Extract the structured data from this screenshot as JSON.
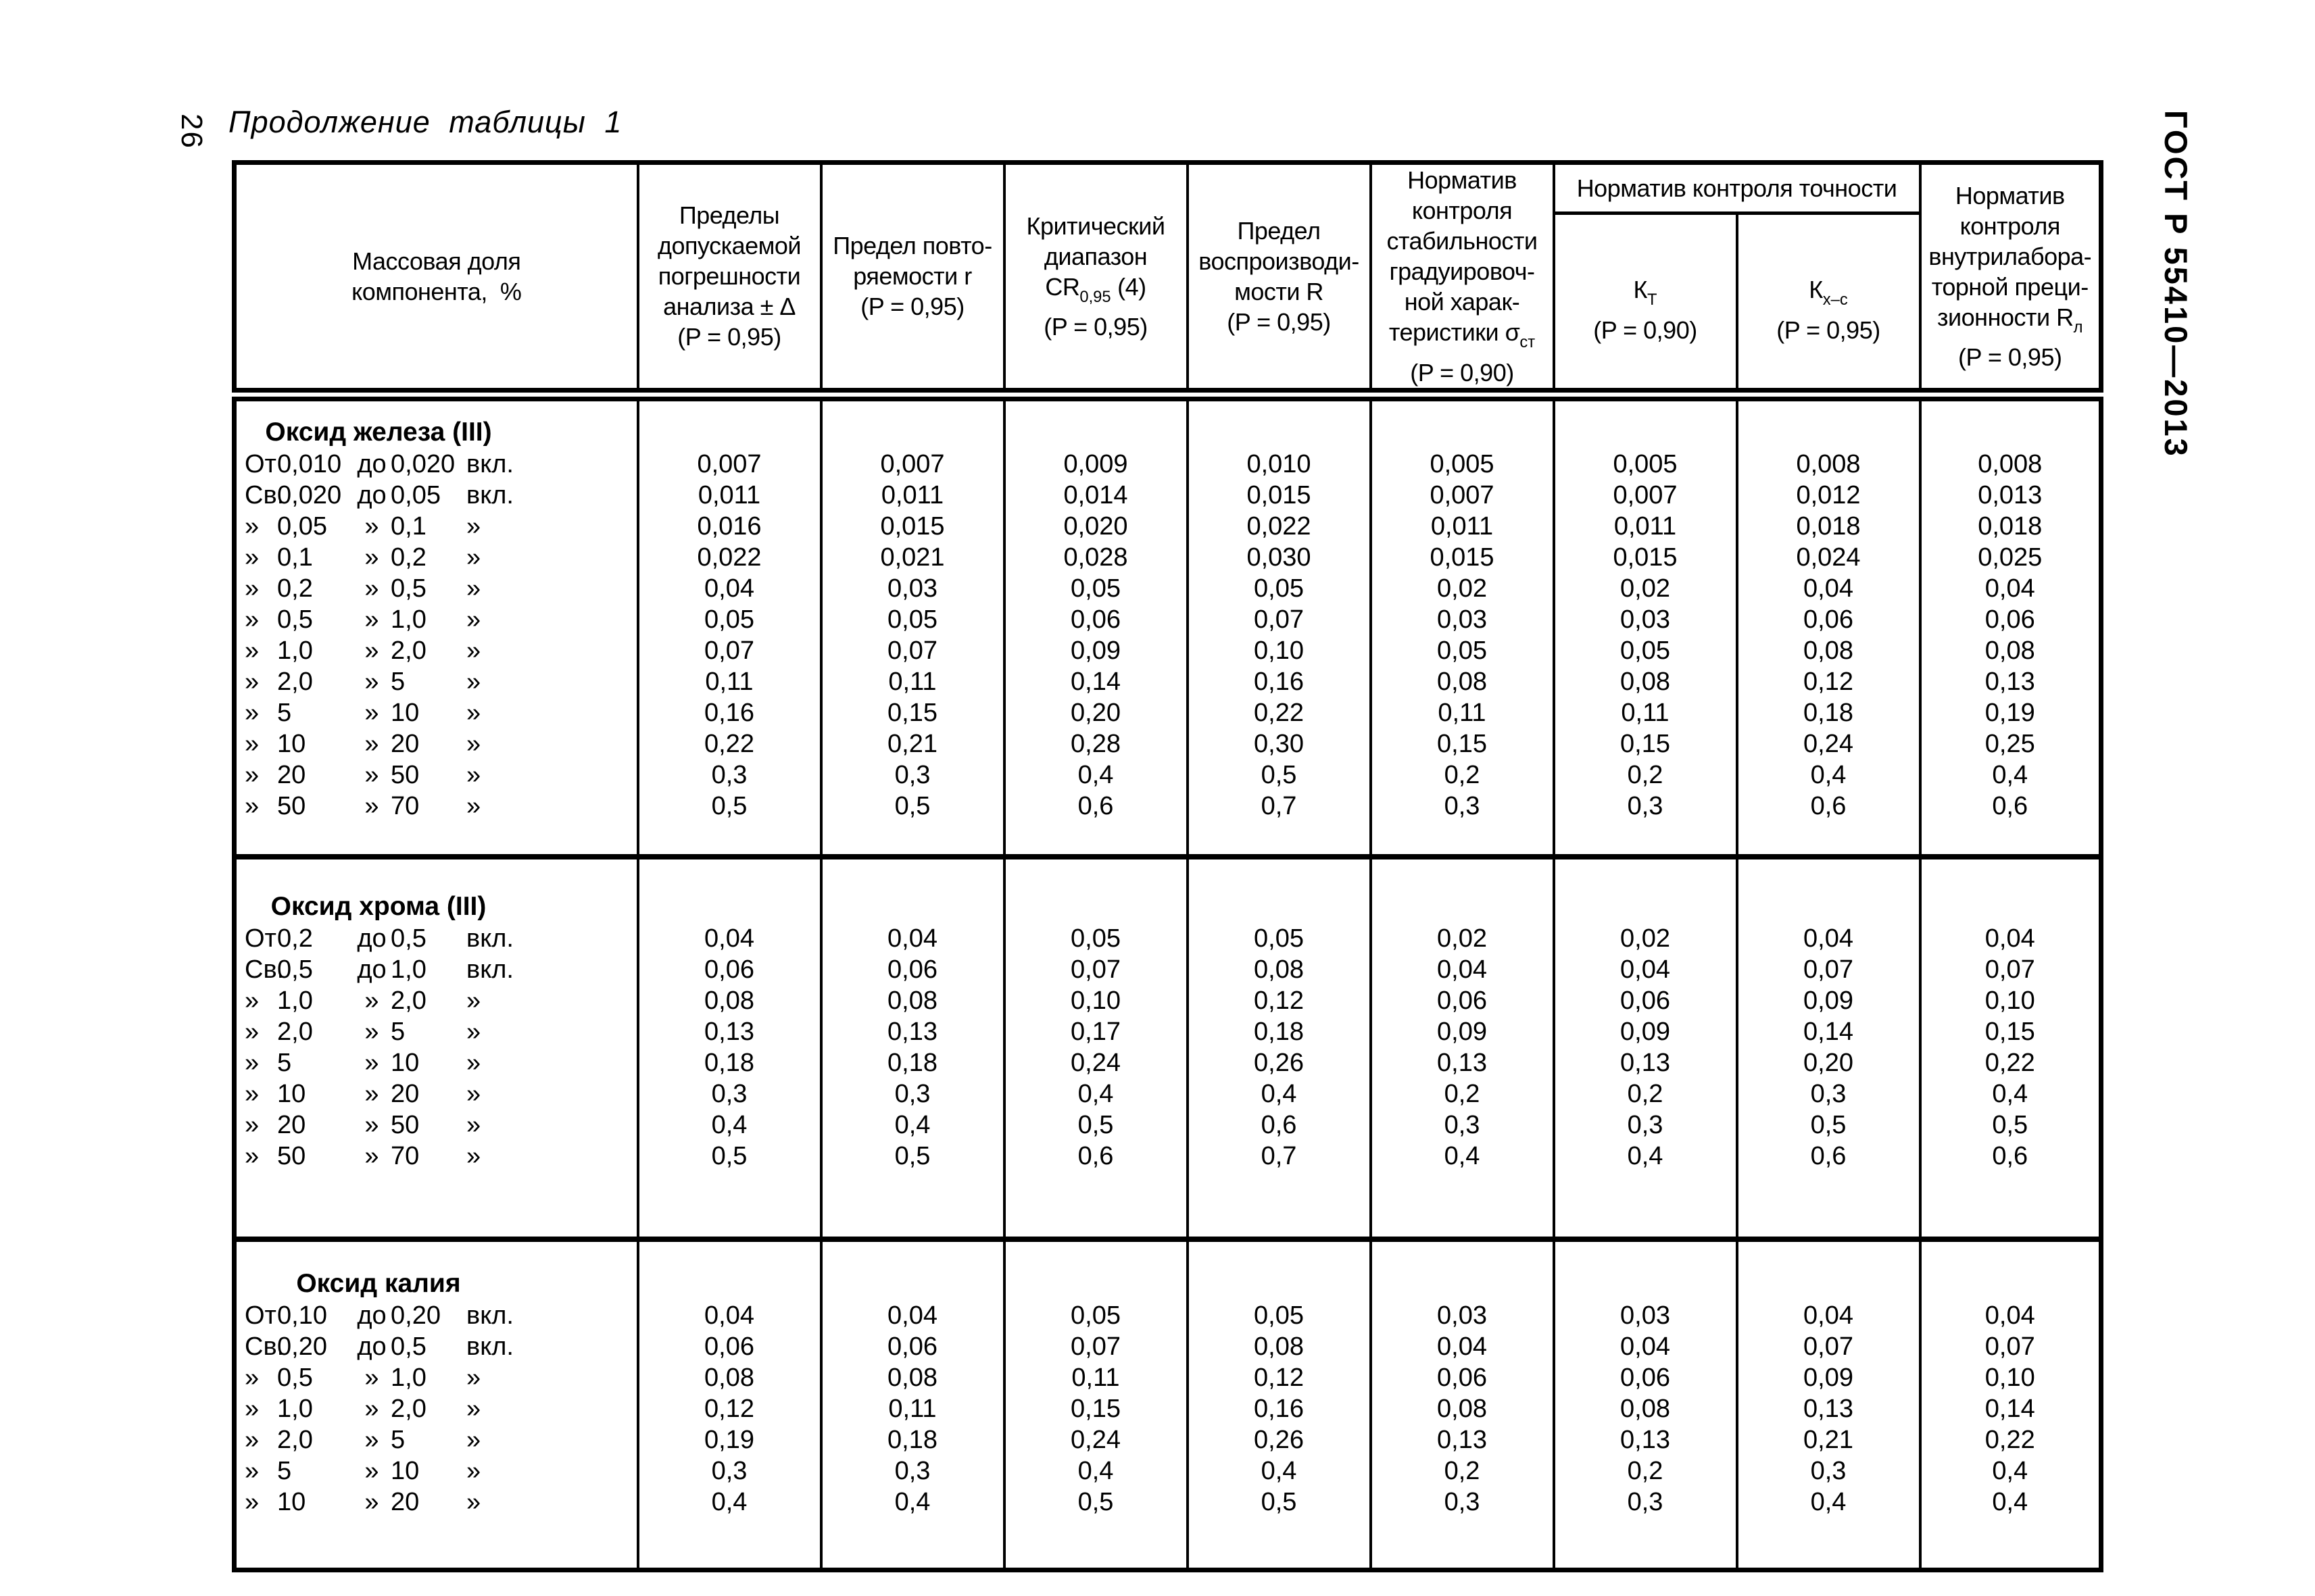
{
  "page": {
    "number": "26",
    "title": "Продолжение таблицы 1",
    "side_label": "ГОСТ Р 55410—2013"
  },
  "header": {
    "col1": {
      "l1": "Массовая доля",
      "l2": "компонента,  %"
    },
    "col2": {
      "l1": "Пределы",
      "l2": "допускаемой",
      "l3": "погрешности",
      "l4": "анализа ± Δ",
      "l5": "(P = 0,95)"
    },
    "col3": {
      "l1": "Предел повто-",
      "l2": "ряемости r",
      "l3": "(P = 0,95)"
    },
    "col4": {
      "l1": "Критический",
      "l2": "диапазон",
      "cr": "CR",
      "cr_sub": "0,95",
      "cr_suf": " (4)",
      "l4": "(P = 0,95)"
    },
    "col5": {
      "l1": "Предел",
      "l2": "воспроизводи-",
      "l3": "мости R",
      "l4": "(P = 0,95)"
    },
    "col6": {
      "l1": "Норматив",
      "l2": "контроля",
      "l3": "стабильности",
      "l4": "градуировоч-",
      "l5": "ной харак-",
      "l6_pre": "теристики σ",
      "l6_sub": "ст",
      "l7": "(P = 0,90)"
    },
    "accuracy_group": {
      "title": "Норматив контроля точности",
      "kt": {
        "sym": "К",
        "sub": "Т",
        "p": "(P = 0,90)"
      },
      "kxc": {
        "sym": "К",
        "sub": "х–с",
        "p": "(P = 0,95)"
      }
    },
    "col9": {
      "l1": "Норматив",
      "l2": "контроля",
      "l3": "внутрилабора-",
      "l4": "торной преци-",
      "l5_pre": "зионности R",
      "l5_sub": "л",
      "l6": "(P = 0,95)"
    }
  },
  "sections": [
    {
      "title": "Оксид железа (III)",
      "rows": [
        {
          "c": [
            "От",
            "0,010",
            "до",
            "0,020",
            "вкл."
          ],
          "v": [
            "0,007",
            "0,007",
            "0,009",
            "0,010",
            "0,005",
            "0,005",
            "0,008",
            "0,008"
          ]
        },
        {
          "c": [
            "Св.",
            "0,020",
            "до",
            "0,05",
            "вкл."
          ],
          "v": [
            "0,011",
            "0,011",
            "0,014",
            "0,015",
            "0,007",
            "0,007",
            "0,012",
            "0,013"
          ]
        },
        {
          "c": [
            "»",
            "0,05",
            "»",
            "0,1",
            "»"
          ],
          "v": [
            "0,016",
            "0,015",
            "0,020",
            "0,022",
            "0,011",
            "0,011",
            "0,018",
            "0,018"
          ]
        },
        {
          "c": [
            "»",
            "0,1",
            "»",
            "0,2",
            "»"
          ],
          "v": [
            "0,022",
            "0,021",
            "0,028",
            "0,030",
            "0,015",
            "0,015",
            "0,024",
            "0,025"
          ]
        },
        {
          "c": [
            "»",
            "0,2",
            "»",
            "0,5",
            "»"
          ],
          "v": [
            "0,04",
            "0,03",
            "0,05",
            "0,05",
            "0,02",
            "0,02",
            "0,04",
            "0,04"
          ]
        },
        {
          "c": [
            "»",
            "0,5",
            "»",
            "1,0",
            "»"
          ],
          "v": [
            "0,05",
            "0,05",
            "0,06",
            "0,07",
            "0,03",
            "0,03",
            "0,06",
            "0,06"
          ]
        },
        {
          "c": [
            "»",
            "1,0",
            "»",
            "2,0",
            "»"
          ],
          "v": [
            "0,07",
            "0,07",
            "0,09",
            "0,10",
            "0,05",
            "0,05",
            "0,08",
            "0,08"
          ]
        },
        {
          "c": [
            "»",
            "2,0",
            "»",
            "5",
            "»"
          ],
          "v": [
            "0,11",
            "0,11",
            "0,14",
            "0,16",
            "0,08",
            "0,08",
            "0,12",
            "0,13"
          ]
        },
        {
          "c": [
            "»",
            "5",
            "»",
            "10",
            "»"
          ],
          "v": [
            "0,16",
            "0,15",
            "0,20",
            "0,22",
            "0,11",
            "0,11",
            "0,18",
            "0,19"
          ]
        },
        {
          "c": [
            "»",
            "10",
            "»",
            "20",
            "»"
          ],
          "v": [
            "0,22",
            "0,21",
            "0,28",
            "0,30",
            "0,15",
            "0,15",
            "0,24",
            "0,25"
          ]
        },
        {
          "c": [
            "»",
            "20",
            "»",
            "50",
            "»"
          ],
          "v": [
            "0,3",
            "0,3",
            "0,4",
            "0,5",
            "0,2",
            "0,2",
            "0,4",
            "0,4"
          ]
        },
        {
          "c": [
            "»",
            "50",
            "»",
            "70",
            "»"
          ],
          "v": [
            "0,5",
            "0,5",
            "0,6",
            "0,7",
            "0,3",
            "0,3",
            "0,6",
            "0,6"
          ]
        }
      ]
    },
    {
      "title": "Оксид хрома (III)",
      "rows": [
        {
          "c": [
            "От",
            "0,2",
            "до",
            "0,5",
            "вкл."
          ],
          "v": [
            "0,04",
            "0,04",
            "0,05",
            "0,05",
            "0,02",
            "0,02",
            "0,04",
            "0,04"
          ]
        },
        {
          "c": [
            "Св.",
            "0,5",
            "до",
            "1,0",
            "вкл."
          ],
          "v": [
            "0,06",
            "0,06",
            "0,07",
            "0,08",
            "0,04",
            "0,04",
            "0,07",
            "0,07"
          ]
        },
        {
          "c": [
            "»",
            "1,0",
            "»",
            "2,0",
            "»"
          ],
          "v": [
            "0,08",
            "0,08",
            "0,10",
            "0,12",
            "0,06",
            "0,06",
            "0,09",
            "0,10"
          ]
        },
        {
          "c": [
            "»",
            "2,0",
            "»",
            "5",
            "»"
          ],
          "v": [
            "0,13",
            "0,13",
            "0,17",
            "0,18",
            "0,09",
            "0,09",
            "0,14",
            "0,15"
          ]
        },
        {
          "c": [
            "»",
            "5",
            "»",
            "10",
            "»"
          ],
          "v": [
            "0,18",
            "0,18",
            "0,24",
            "0,26",
            "0,13",
            "0,13",
            "0,20",
            "0,22"
          ]
        },
        {
          "c": [
            "»",
            "10",
            "»",
            "20",
            "»"
          ],
          "v": [
            "0,3",
            "0,3",
            "0,4",
            "0,4",
            "0,2",
            "0,2",
            "0,3",
            "0,4"
          ]
        },
        {
          "c": [
            "»",
            "20",
            "»",
            "50",
            "»"
          ],
          "v": [
            "0,4",
            "0,4",
            "0,5",
            "0,6",
            "0,3",
            "0,3",
            "0,5",
            "0,5"
          ]
        },
        {
          "c": [
            "»",
            "50",
            "»",
            "70",
            "»"
          ],
          "v": [
            "0,5",
            "0,5",
            "0,6",
            "0,7",
            "0,4",
            "0,4",
            "0,6",
            "0,6"
          ]
        }
      ]
    },
    {
      "title": "Оксид калия",
      "rows": [
        {
          "c": [
            "От",
            "0,10",
            "до",
            "0,20",
            "вкл."
          ],
          "v": [
            "0,04",
            "0,04",
            "0,05",
            "0,05",
            "0,03",
            "0,03",
            "0,04",
            "0,04"
          ]
        },
        {
          "c": [
            "Св.",
            "0,20",
            "до",
            "0,5",
            "вкл."
          ],
          "v": [
            "0,06",
            "0,06",
            "0,07",
            "0,08",
            "0,04",
            "0,04",
            "0,07",
            "0,07"
          ]
        },
        {
          "c": [
            "»",
            "0,5",
            "»",
            "1,0",
            "»"
          ],
          "v": [
            "0,08",
            "0,08",
            "0,11",
            "0,12",
            "0,06",
            "0,06",
            "0,09",
            "0,10"
          ]
        },
        {
          "c": [
            "»",
            "1,0",
            "»",
            "2,0",
            "»"
          ],
          "v": [
            "0,12",
            "0,11",
            "0,15",
            "0,16",
            "0,08",
            "0,08",
            "0,13",
            "0,14"
          ]
        },
        {
          "c": [
            "»",
            "2,0",
            "»",
            "5",
            "»"
          ],
          "v": [
            "0,19",
            "0,18",
            "0,24",
            "0,26",
            "0,13",
            "0,13",
            "0,21",
            "0,22"
          ]
        },
        {
          "c": [
            "»",
            "5",
            "»",
            "10",
            "»"
          ],
          "v": [
            "0,3",
            "0,3",
            "0,4",
            "0,4",
            "0,2",
            "0,2",
            "0,3",
            "0,4"
          ]
        },
        {
          "c": [
            "»",
            "10",
            "»",
            "20",
            "»"
          ],
          "v": [
            "0,4",
            "0,4",
            "0,5",
            "0,5",
            "0,3",
            "0,3",
            "0,4",
            "0,4"
          ]
        }
      ]
    }
  ]
}
